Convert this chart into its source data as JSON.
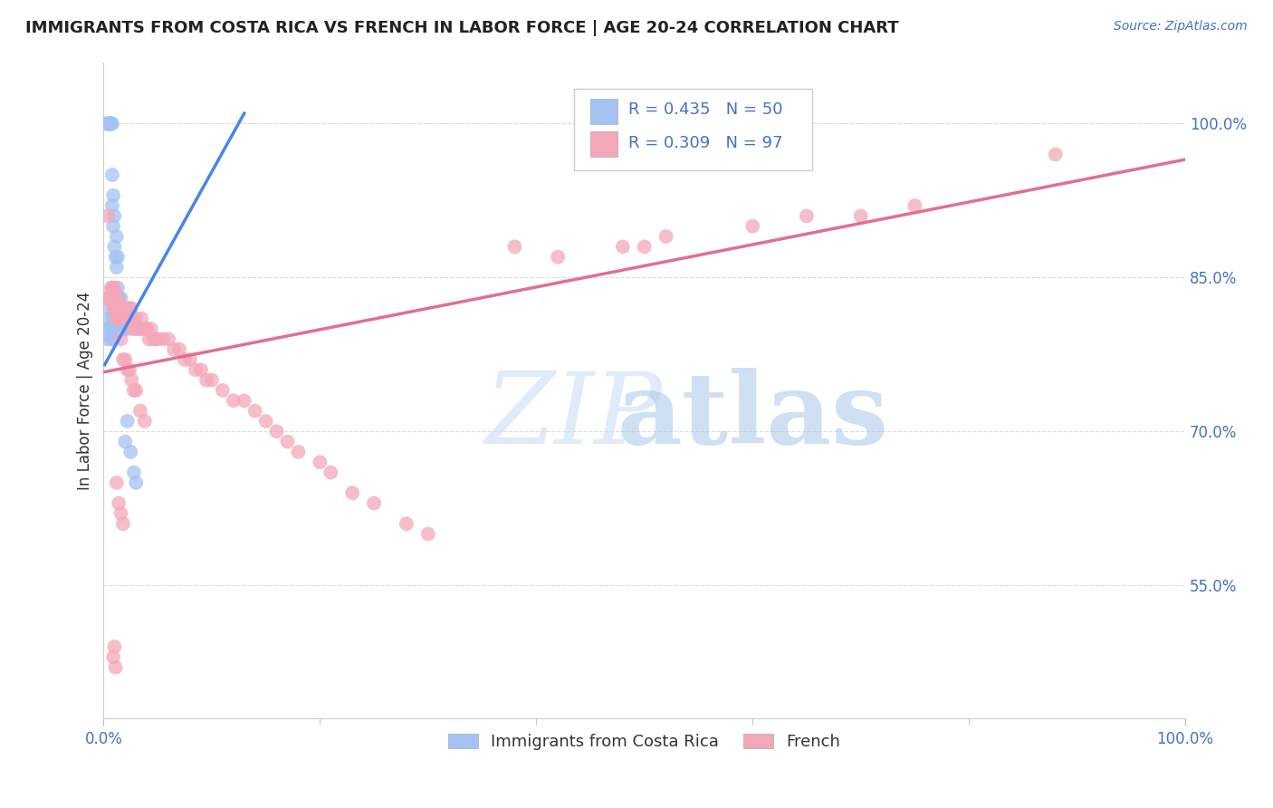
{
  "title": "IMMIGRANTS FROM COSTA RICA VS FRENCH IN LABOR FORCE | AGE 20-24 CORRELATION CHART",
  "source": "Source: ZipAtlas.com",
  "ylabel": "In Labor Force | Age 20-24",
  "xlim": [
    0.0,
    1.0
  ],
  "ylim": [
    0.42,
    1.06
  ],
  "y_tick_labels": [
    "55.0%",
    "70.0%",
    "85.0%",
    "100.0%"
  ],
  "y_tick_positions": [
    0.55,
    0.7,
    0.85,
    1.0
  ],
  "x_tick_labels": [
    "0.0%",
    "100.0%"
  ],
  "x_tick_positions": [
    0.0,
    1.0
  ],
  "legend1_r": "0.435",
  "legend1_n": "50",
  "legend2_r": "0.309",
  "legend2_n": "97",
  "color_blue": "#a4c2f4",
  "color_pink": "#f4a7b9",
  "color_blue_line": "#4a86e8",
  "color_pink_line": "#e07090",
  "background_color": "#ffffff",
  "grid_color": "#d0d0e8",
  "blue_x": [
    0.002,
    0.003,
    0.004,
    0.004,
    0.005,
    0.005,
    0.006,
    0.006,
    0.007,
    0.007,
    0.008,
    0.008,
    0.008,
    0.009,
    0.009,
    0.01,
    0.01,
    0.011,
    0.012,
    0.012,
    0.013,
    0.013,
    0.014,
    0.015,
    0.016,
    0.017,
    0.018,
    0.02,
    0.022,
    0.025,
    0.003,
    0.004,
    0.005,
    0.005,
    0.006,
    0.007,
    0.008,
    0.009,
    0.01,
    0.011,
    0.012,
    0.013,
    0.015,
    0.016,
    0.018,
    0.02,
    0.022,
    0.025,
    0.028,
    0.03
  ],
  "blue_y": [
    1.0,
    1.0,
    1.0,
    1.0,
    1.0,
    1.0,
    1.0,
    1.0,
    1.0,
    1.0,
    0.92,
    0.95,
    1.0,
    0.9,
    0.93,
    0.88,
    0.91,
    0.87,
    0.86,
    0.89,
    0.84,
    0.87,
    0.83,
    0.82,
    0.83,
    0.81,
    0.8,
    0.81,
    0.8,
    0.82,
    0.79,
    0.8,
    0.82,
    0.81,
    0.8,
    0.79,
    0.81,
    0.79,
    0.8,
    0.82,
    0.8,
    0.81,
    0.8,
    0.8,
    0.8,
    0.69,
    0.71,
    0.68,
    0.66,
    0.65
  ],
  "pink_x": [
    0.002,
    0.004,
    0.005,
    0.006,
    0.007,
    0.008,
    0.008,
    0.009,
    0.01,
    0.01,
    0.011,
    0.011,
    0.012,
    0.013,
    0.013,
    0.014,
    0.015,
    0.015,
    0.016,
    0.017,
    0.018,
    0.018,
    0.019,
    0.02,
    0.02,
    0.021,
    0.022,
    0.022,
    0.024,
    0.025,
    0.026,
    0.027,
    0.028,
    0.03,
    0.03,
    0.032,
    0.034,
    0.035,
    0.036,
    0.038,
    0.04,
    0.042,
    0.044,
    0.046,
    0.048,
    0.05,
    0.055,
    0.06,
    0.065,
    0.07,
    0.075,
    0.08,
    0.085,
    0.09,
    0.095,
    0.1,
    0.11,
    0.12,
    0.13,
    0.14,
    0.15,
    0.16,
    0.17,
    0.18,
    0.2,
    0.21,
    0.23,
    0.25,
    0.28,
    0.3,
    0.016,
    0.018,
    0.02,
    0.022,
    0.024,
    0.026,
    0.028,
    0.03,
    0.034,
    0.038,
    0.012,
    0.014,
    0.016,
    0.018,
    0.009,
    0.01,
    0.011,
    0.38,
    0.42,
    0.48,
    0.5,
    0.52,
    0.6,
    0.65,
    0.7,
    0.75,
    0.88
  ],
  "pink_y": [
    0.83,
    0.91,
    0.83,
    0.83,
    0.84,
    0.83,
    0.84,
    0.82,
    0.84,
    0.82,
    0.82,
    0.83,
    0.81,
    0.82,
    0.83,
    0.81,
    0.81,
    0.82,
    0.81,
    0.82,
    0.81,
    0.82,
    0.81,
    0.81,
    0.82,
    0.81,
    0.81,
    0.82,
    0.81,
    0.82,
    0.81,
    0.8,
    0.81,
    0.8,
    0.81,
    0.8,
    0.8,
    0.81,
    0.8,
    0.8,
    0.8,
    0.79,
    0.8,
    0.79,
    0.79,
    0.79,
    0.79,
    0.79,
    0.78,
    0.78,
    0.77,
    0.77,
    0.76,
    0.76,
    0.75,
    0.75,
    0.74,
    0.73,
    0.73,
    0.72,
    0.71,
    0.7,
    0.69,
    0.68,
    0.67,
    0.66,
    0.64,
    0.63,
    0.61,
    0.6,
    0.79,
    0.77,
    0.77,
    0.76,
    0.76,
    0.75,
    0.74,
    0.74,
    0.72,
    0.71,
    0.65,
    0.63,
    0.62,
    0.61,
    0.48,
    0.49,
    0.47,
    0.88,
    0.87,
    0.88,
    0.88,
    0.89,
    0.9,
    0.91,
    0.91,
    0.92,
    0.97
  ],
  "blue_line_x": [
    0.001,
    0.13
  ],
  "blue_line_y": [
    0.765,
    1.01
  ],
  "pink_line_x": [
    0.001,
    1.0
  ],
  "pink_line_y": [
    0.758,
    0.965
  ]
}
